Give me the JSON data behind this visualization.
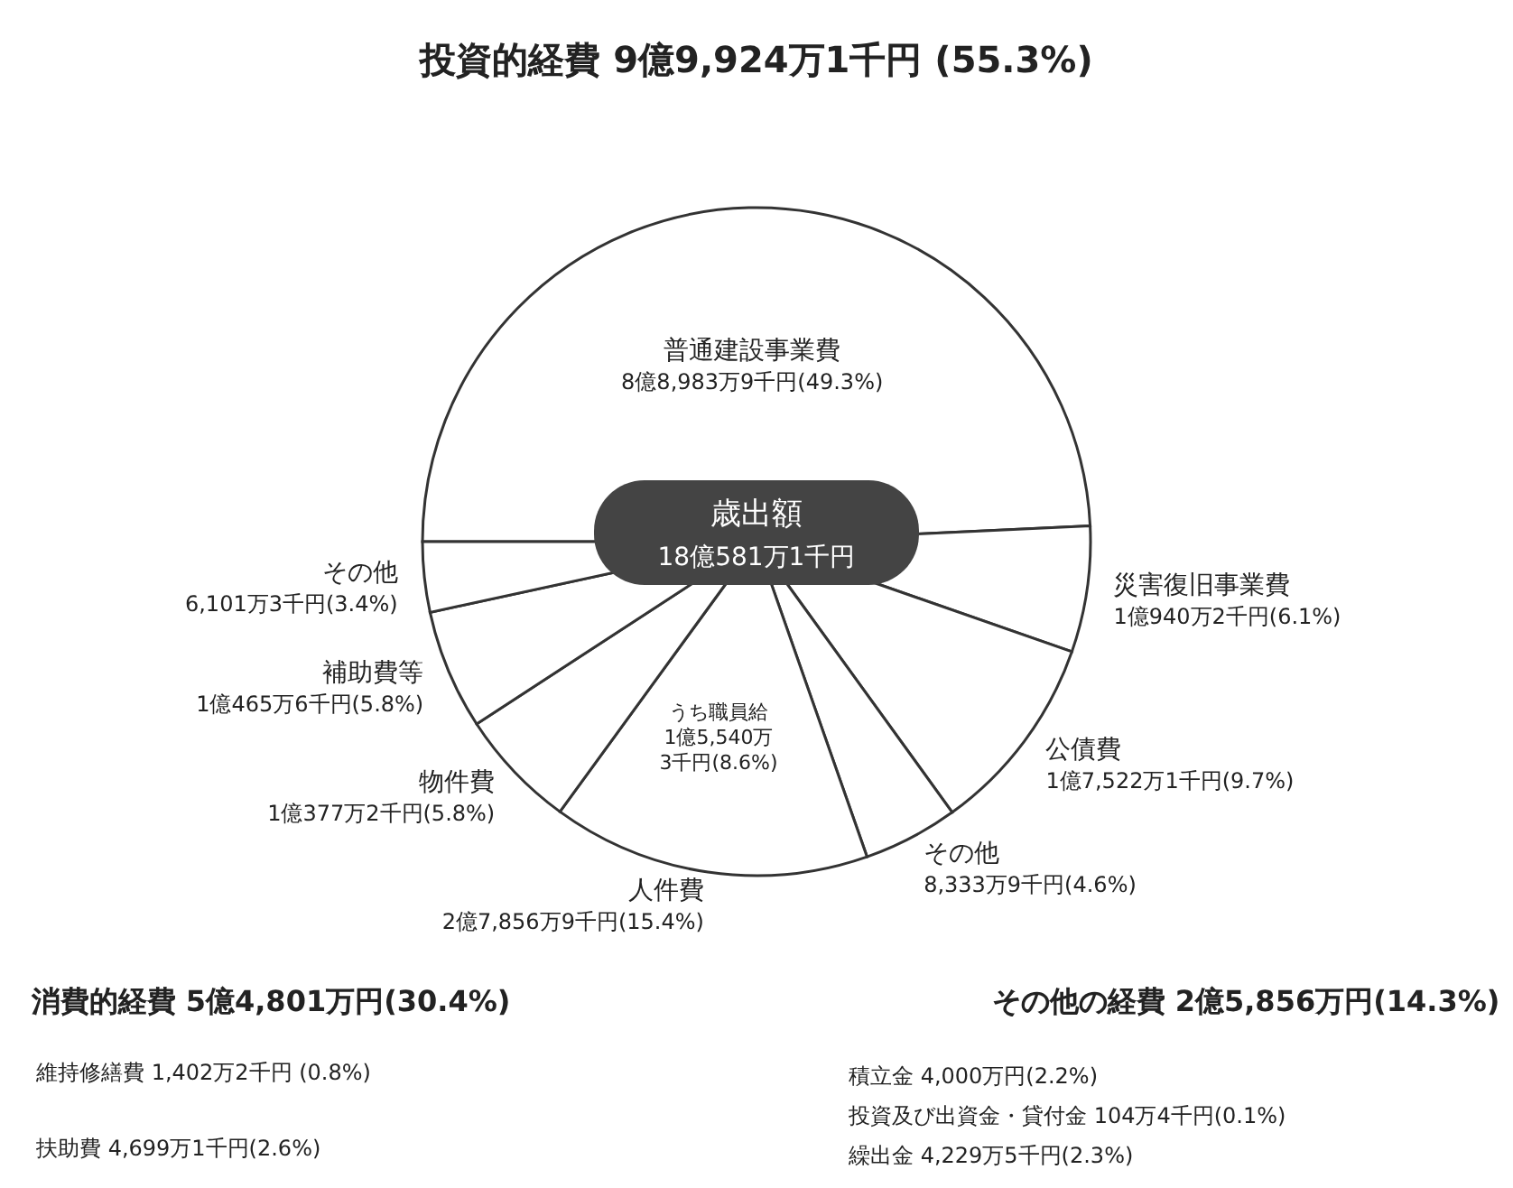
{
  "chart_data": {
    "type": "pie",
    "title": "歳出額",
    "subtitle": "18億581万1千円",
    "categories": [
      "普通建設事業費",
      "災害復旧事業費",
      "公債費",
      "その他",
      "人件費",
      "物件費",
      "補助費等",
      "その他"
    ],
    "values": [
      49.3,
      6.1,
      9.7,
      4.6,
      15.4,
      5.8,
      5.8,
      3.4
    ],
    "value_labels": [
      "8億8,983万9千円(49.3%)",
      "1億940万2千円(6.1%)",
      "1億7,522万1千円(9.7%)",
      "8,333万9千円(4.6%)",
      "2億7,856万9千円(15.4%)",
      "1億377万2千円(5.8%)",
      "1億465万6千円(5.8%)",
      "6,101万3千円(3.4%)"
    ],
    "colors": [
      "#ffffff",
      "#ffffff",
      "#ffffff",
      "#ffffff",
      "#ffffff",
      "#ffffff",
      "#ffffff",
      "#ffffff"
    ],
    "annotations": [
      "投資的経費 9億9,924万1千円 (55.3%)",
      "消費的経費 5億4,801万円(30.4%)",
      "その他の経費 2億5,856万円(14.3%)",
      "うち職員給 1億5,540万3千円(8.6%)",
      "維持修繕費 1,402万2千円 (0.8%)",
      "扶助費 4,699万1千円(2.6%)",
      "積立金 4,000万円(2.2%)",
      "投資及び出資金・貸付金 104万4千円(0.1%)",
      "繰出金 4,229万5千円(2.3%)"
    ]
  }
}
